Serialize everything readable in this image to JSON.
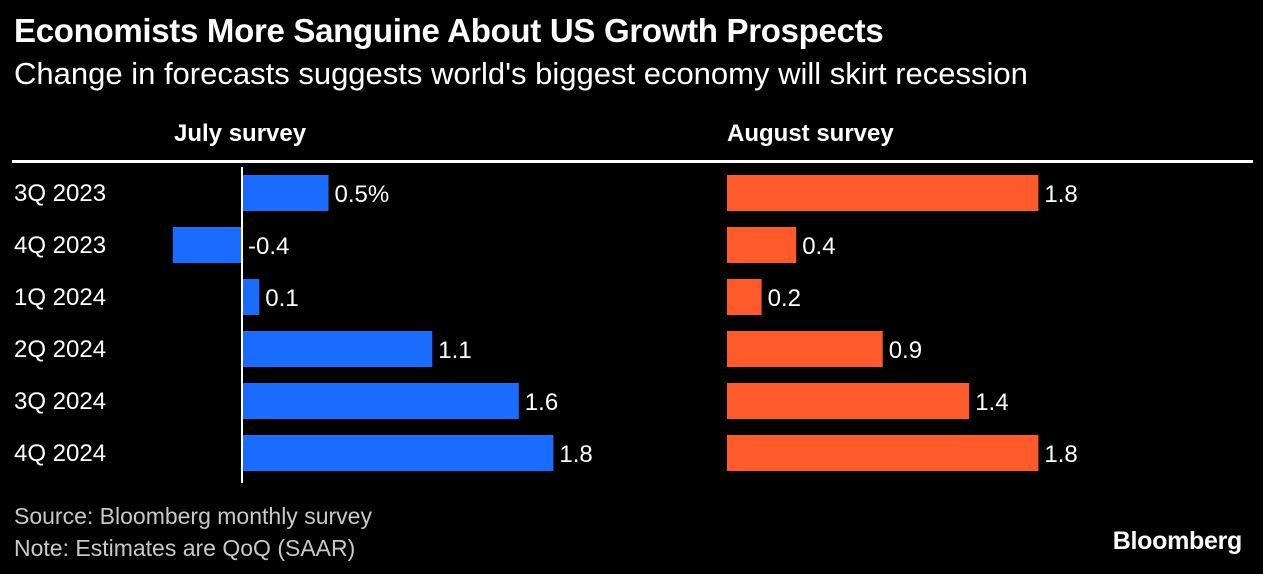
{
  "title": "Economists More Sanguine About US Growth Prospects",
  "subtitle": "Change in forecasts suggests world's biggest economy will skirt recession",
  "chart_data": {
    "type": "bar",
    "orientation": "horizontal",
    "categories": [
      "3Q 2023",
      "4Q 2023",
      "1Q 2024",
      "2Q 2024",
      "3Q 2024",
      "4Q 2024"
    ],
    "series": [
      {
        "name": "July survey",
        "values": [
          0.5,
          -0.4,
          0.1,
          1.1,
          1.6,
          1.8
        ],
        "value_labels": [
          "0.5%",
          "-0.4",
          "0.1",
          "1.1",
          "1.6",
          "1.8"
        ],
        "color": "#1a6bff"
      },
      {
        "name": "August survey",
        "values": [
          1.8,
          0.4,
          0.2,
          0.9,
          1.4,
          1.8
        ],
        "value_labels": [
          "1.8",
          "0.4",
          "0.2",
          "0.9",
          "1.4",
          "1.8"
        ],
        "color": "#ff5a2b"
      }
    ],
    "unit": "%",
    "grid": false,
    "legend": "panel headers"
  },
  "footer": {
    "source": "Source: Bloomberg monthly survey",
    "note": "Note: Estimates are QoQ (SAAR)"
  },
  "brand": "Bloomberg"
}
